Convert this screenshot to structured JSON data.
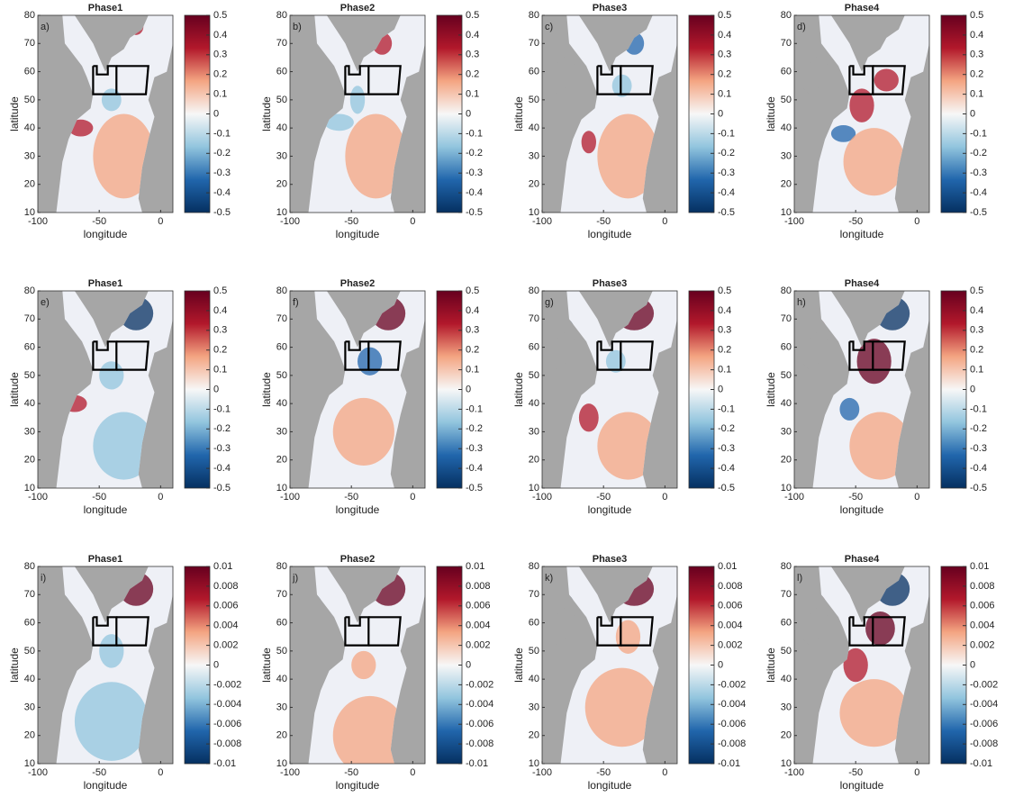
{
  "chart_data": [
    {
      "type": "map",
      "title": "Phase1",
      "panel_label": "a)",
      "xlabel": "longitude",
      "ylabel": "latitude",
      "xlim": [
        -100,
        10
      ],
      "xticks": [
        -100,
        -50,
        0
      ],
      "ylim": [
        10,
        80
      ],
      "yticks": [
        10,
        20,
        30,
        40,
        50,
        60,
        70,
        80
      ],
      "clim": [
        -0.5,
        0.5
      ],
      "cticks": [
        -0.5,
        -0.4,
        -0.3,
        -0.2,
        -0.1,
        0,
        0.1,
        0.2,
        0.3,
        0.4,
        0.5
      ],
      "colormap": [
        "#053061",
        "#2166ac",
        "#92c5de",
        "#f7f7f7",
        "#f4a582",
        "#b2182b",
        "#67001f"
      ]
    },
    {
      "type": "map",
      "title": "Phase2",
      "panel_label": "b)",
      "xlabel": "longitude",
      "ylabel": "latitude",
      "xlim": [
        -100,
        10
      ],
      "xticks": [
        -100,
        -50,
        0
      ],
      "ylim": [
        10,
        80
      ],
      "yticks": [
        10,
        20,
        30,
        40,
        50,
        60,
        70,
        80
      ],
      "clim": [
        -0.5,
        0.5
      ],
      "cticks": [
        -0.5,
        -0.4,
        -0.3,
        -0.2,
        -0.1,
        0,
        0.1,
        0.2,
        0.3,
        0.4,
        0.5
      ],
      "colormap": [
        "#053061",
        "#2166ac",
        "#92c5de",
        "#f7f7f7",
        "#f4a582",
        "#b2182b",
        "#67001f"
      ]
    },
    {
      "type": "map",
      "title": "Phase3",
      "panel_label": "c)",
      "xlabel": "longitude",
      "ylabel": "latitude",
      "xlim": [
        -100,
        10
      ],
      "xticks": [
        -100,
        -50,
        0
      ],
      "ylim": [
        10,
        80
      ],
      "yticks": [
        10,
        20,
        30,
        40,
        50,
        60,
        70,
        80
      ],
      "clim": [
        -0.5,
        0.5
      ],
      "cticks": [
        -0.5,
        -0.4,
        -0.3,
        -0.2,
        -0.1,
        0,
        0.1,
        0.2,
        0.3,
        0.4,
        0.5
      ],
      "colormap": [
        "#053061",
        "#2166ac",
        "#92c5de",
        "#f7f7f7",
        "#f4a582",
        "#b2182b",
        "#67001f"
      ]
    },
    {
      "type": "map",
      "title": "Phase4",
      "panel_label": "d)",
      "xlabel": "longitude",
      "ylabel": "latitude",
      "xlim": [
        -100,
        10
      ],
      "xticks": [
        -100,
        -50,
        0
      ],
      "ylim": [
        10,
        80
      ],
      "yticks": [
        10,
        20,
        30,
        40,
        50,
        60,
        70,
        80
      ],
      "clim": [
        -0.5,
        0.5
      ],
      "cticks": [
        -0.5,
        -0.4,
        -0.3,
        -0.2,
        -0.1,
        0,
        0.1,
        0.2,
        0.3,
        0.4,
        0.5
      ],
      "colormap": [
        "#053061",
        "#2166ac",
        "#92c5de",
        "#f7f7f7",
        "#f4a582",
        "#b2182b",
        "#67001f"
      ]
    },
    {
      "type": "map",
      "title": "Phase1",
      "panel_label": "e)",
      "xlabel": "longitude",
      "ylabel": "latitude",
      "xlim": [
        -100,
        10
      ],
      "xticks": [
        -100,
        -50,
        0
      ],
      "ylim": [
        10,
        80
      ],
      "yticks": [
        10,
        20,
        30,
        40,
        50,
        60,
        70,
        80
      ],
      "clim": [
        -0.5,
        0.5
      ],
      "cticks": [
        -0.5,
        -0.4,
        -0.3,
        -0.2,
        -0.1,
        0,
        0.1,
        0.2,
        0.3,
        0.4,
        0.5
      ],
      "colormap": [
        "#053061",
        "#2166ac",
        "#92c5de",
        "#f7f7f7",
        "#f4a582",
        "#b2182b",
        "#67001f"
      ]
    },
    {
      "type": "map",
      "title": "Phase2",
      "panel_label": "f)",
      "xlabel": "longitude",
      "ylabel": "latitude",
      "xlim": [
        -100,
        10
      ],
      "xticks": [
        -100,
        -50,
        0
      ],
      "ylim": [
        10,
        80
      ],
      "yticks": [
        10,
        20,
        30,
        40,
        50,
        60,
        70,
        80
      ],
      "clim": [
        -0.5,
        0.5
      ],
      "cticks": [
        -0.5,
        -0.4,
        -0.3,
        -0.2,
        -0.1,
        0,
        0.1,
        0.2,
        0.3,
        0.4,
        0.5
      ],
      "colormap": [
        "#053061",
        "#2166ac",
        "#92c5de",
        "#f7f7f7",
        "#f4a582",
        "#b2182b",
        "#67001f"
      ]
    },
    {
      "type": "map",
      "title": "Phase3",
      "panel_label": "g)",
      "xlabel": "longitude",
      "ylabel": "latitude",
      "xlim": [
        -100,
        10
      ],
      "xticks": [
        -100,
        -50,
        0
      ],
      "ylim": [
        10,
        80
      ],
      "yticks": [
        10,
        20,
        30,
        40,
        50,
        60,
        70,
        80
      ],
      "clim": [
        -0.5,
        0.5
      ],
      "cticks": [
        -0.5,
        -0.4,
        -0.3,
        -0.2,
        -0.1,
        0,
        0.1,
        0.2,
        0.3,
        0.4,
        0.5
      ],
      "colormap": [
        "#053061",
        "#2166ac",
        "#92c5de",
        "#f7f7f7",
        "#f4a582",
        "#b2182b",
        "#67001f"
      ]
    },
    {
      "type": "map",
      "title": "Phase4",
      "panel_label": "h)",
      "xlabel": "longitude",
      "ylabel": "latitude",
      "xlim": [
        -100,
        10
      ],
      "xticks": [
        -100,
        -50,
        0
      ],
      "ylim": [
        10,
        80
      ],
      "yticks": [
        10,
        20,
        30,
        40,
        50,
        60,
        70,
        80
      ],
      "clim": [
        -0.5,
        0.5
      ],
      "cticks": [
        -0.5,
        -0.4,
        -0.3,
        -0.2,
        -0.1,
        0,
        0.1,
        0.2,
        0.3,
        0.4,
        0.5
      ],
      "colormap": [
        "#053061",
        "#2166ac",
        "#92c5de",
        "#f7f7f7",
        "#f4a582",
        "#b2182b",
        "#67001f"
      ]
    },
    {
      "type": "map",
      "title": "Phase1",
      "panel_label": "i)",
      "xlabel": "longitude",
      "ylabel": "latitude",
      "xlim": [
        -100,
        10
      ],
      "xticks": [
        -100,
        -50,
        0
      ],
      "ylim": [
        10,
        80
      ],
      "yticks": [
        10,
        20,
        30,
        40,
        50,
        60,
        70,
        80
      ],
      "clim": [
        -0.01,
        0.01
      ],
      "cticks": [
        -0.01,
        -0.008,
        -0.006,
        -0.004,
        -0.002,
        0,
        0.002,
        0.004,
        0.006,
        0.008,
        0.01
      ],
      "colormap": [
        "#053061",
        "#2166ac",
        "#92c5de",
        "#f7f7f7",
        "#f4a582",
        "#b2182b",
        "#67001f"
      ]
    },
    {
      "type": "map",
      "title": "Phase2",
      "panel_label": "j)",
      "xlabel": "longitude",
      "ylabel": "latitude",
      "xlim": [
        -100,
        10
      ],
      "xticks": [
        -100,
        -50,
        0
      ],
      "ylim": [
        10,
        80
      ],
      "yticks": [
        10,
        20,
        30,
        40,
        50,
        60,
        70,
        80
      ],
      "clim": [
        -0.01,
        0.01
      ],
      "cticks": [
        -0.01,
        -0.008,
        -0.006,
        -0.004,
        -0.002,
        0,
        0.002,
        0.004,
        0.006,
        0.008,
        0.01
      ],
      "colormap": [
        "#053061",
        "#2166ac",
        "#92c5de",
        "#f7f7f7",
        "#f4a582",
        "#b2182b",
        "#67001f"
      ]
    },
    {
      "type": "map",
      "title": "Phase3",
      "panel_label": "k)",
      "xlabel": "longitude",
      "ylabel": "latitude",
      "xlim": [
        -100,
        10
      ],
      "xticks": [
        -100,
        -50,
        0
      ],
      "ylim": [
        10,
        80
      ],
      "yticks": [
        10,
        20,
        30,
        40,
        50,
        60,
        70,
        80
      ],
      "clim": [
        -0.01,
        0.01
      ],
      "cticks": [
        -0.01,
        -0.008,
        -0.006,
        -0.004,
        -0.002,
        0,
        0.002,
        0.004,
        0.006,
        0.008,
        0.01
      ],
      "colormap": [
        "#053061",
        "#2166ac",
        "#92c5de",
        "#f7f7f7",
        "#f4a582",
        "#b2182b",
        "#67001f"
      ]
    },
    {
      "type": "map",
      "title": "Phase4",
      "panel_label": "l)",
      "xlabel": "longitude",
      "ylabel": "latitude",
      "xlim": [
        -100,
        10
      ],
      "xticks": [
        -100,
        -50,
        0
      ],
      "ylim": [
        10,
        80
      ],
      "yticks": [
        10,
        20,
        30,
        40,
        50,
        60,
        70,
        80
      ],
      "clim": [
        -0.01,
        0.01
      ],
      "cticks": [
        -0.01,
        -0.008,
        -0.006,
        -0.004,
        -0.002,
        0,
        0.002,
        0.004,
        0.006,
        0.008,
        0.01
      ],
      "colormap": [
        "#053061",
        "#2166ac",
        "#92c5de",
        "#f7f7f7",
        "#f4a582",
        "#b2182b",
        "#67001f"
      ]
    }
  ]
}
